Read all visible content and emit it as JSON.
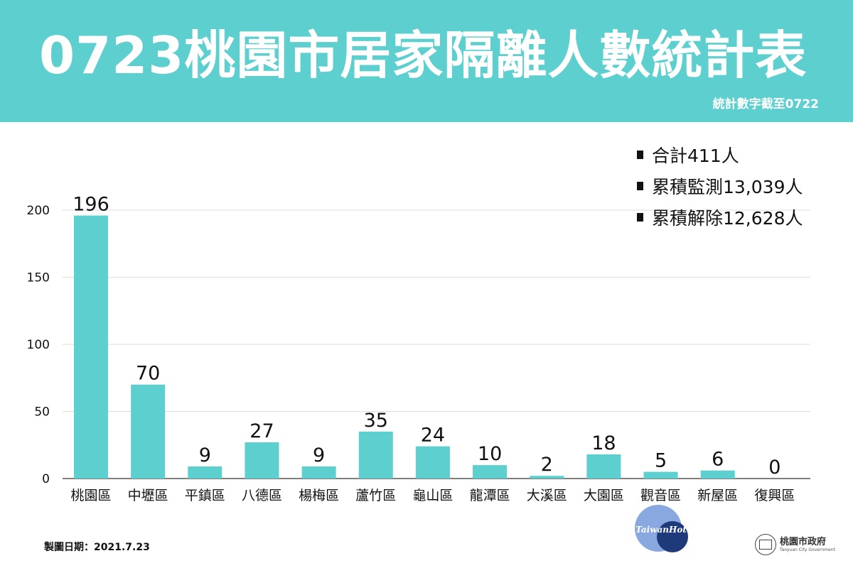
{
  "header": {
    "title": "0723桃園市居家隔離人數統計表",
    "subtitle": "統計數字截至0722"
  },
  "summary": [
    "合計411人",
    "累積監測13,039人",
    "累積解除12,628人"
  ],
  "chart_data": {
    "type": "bar",
    "categories": [
      "桃園區",
      "中壢區",
      "平鎮區",
      "八德區",
      "楊梅區",
      "蘆竹區",
      "龜山區",
      "龍潭區",
      "大溪區",
      "大園區",
      "觀音區",
      "新屋區",
      "復興區"
    ],
    "values": [
      196,
      70,
      9,
      27,
      9,
      35,
      24,
      10,
      2,
      18,
      5,
      6,
      0
    ],
    "ylim": [
      0,
      200
    ],
    "yticks": [
      0,
      50,
      100,
      150,
      200
    ],
    "grid": true,
    "bar_color": "#5ecfcf"
  },
  "footer": {
    "date_label": "製圖日期：2021.7.23",
    "org_name": "桃園市政府",
    "org_english": "Taoyuan City Government",
    "watermark_text": "TaiwanHot"
  },
  "colors": {
    "banner": "#5ecfcf",
    "bar": "#5ecfcf",
    "watermark_light": "#8aa8e0",
    "watermark_dark": "#1f3a7a"
  }
}
